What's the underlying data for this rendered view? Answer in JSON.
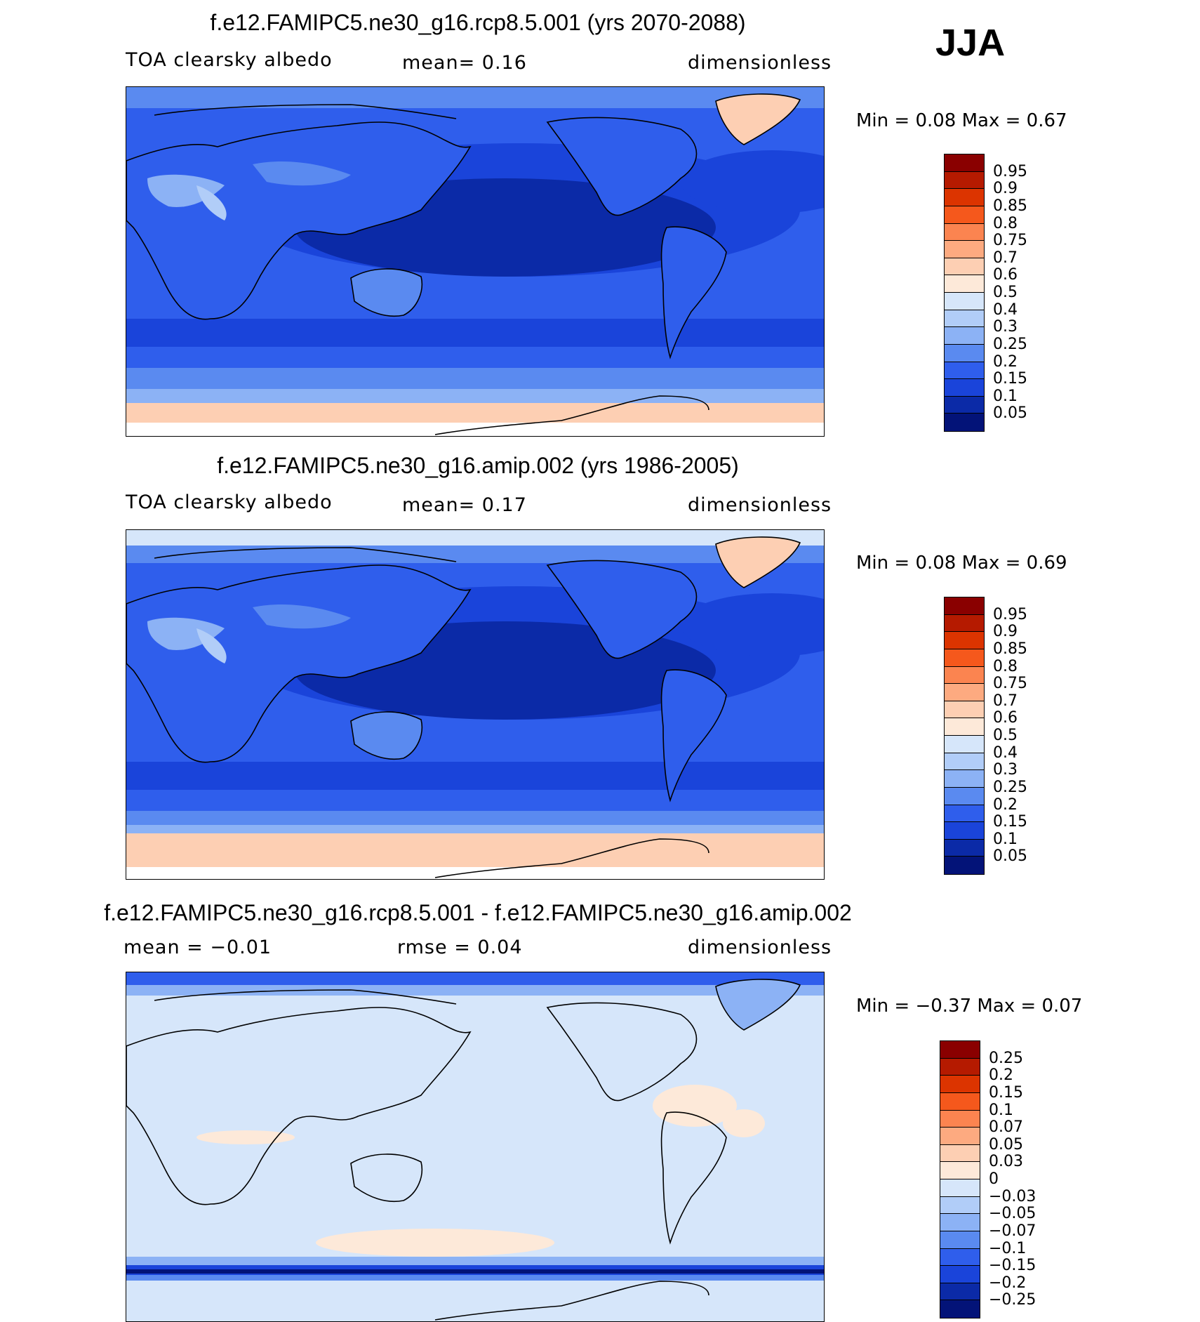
{
  "season": "JJA",
  "panels": [
    {
      "title": "f.e12.FAMIPC5.ne30_g16.rcp8.5.001 (yrs 2070-2088)",
      "variable": "TOA clearsky albedo",
      "stat1": "mean=    0.16",
      "units": "dimensionless",
      "minmax": "Min =    0.08  Max =    0.67",
      "colorbar": [
        "0.95",
        "0.9",
        "0.85",
        "0.8",
        "0.75",
        "0.7",
        "0.6",
        "0.5",
        "0.4",
        "0.3",
        "0.25",
        "0.2",
        "0.15",
        "0.1",
        "0.05"
      ]
    },
    {
      "title": "f.e12.FAMIPC5.ne30_g16.amip.002 (yrs 1986-2005)",
      "variable": "TOA clearsky albedo",
      "stat1": "mean=    0.17",
      "units": "dimensionless",
      "minmax": "Min =    0.08  Max =    0.69",
      "colorbar": [
        "0.95",
        "0.9",
        "0.85",
        "0.8",
        "0.75",
        "0.7",
        "0.6",
        "0.5",
        "0.4",
        "0.3",
        "0.25",
        "0.2",
        "0.15",
        "0.1",
        "0.05"
      ]
    },
    {
      "title": "f.e12.FAMIPC5.ne30_g16.rcp8.5.001 - f.e12.FAMIPC5.ne30_g16.amip.002",
      "stat1": "mean =   −0.01",
      "stat2": "rmse =    0.04",
      "units": "dimensionless",
      "minmax": "Min =   −0.37  Max =    0.07",
      "colorbar": [
        "0.25",
        "0.2",
        "0.15",
        "0.1",
        "0.07",
        "0.05",
        "0.03",
        "0",
        "−0.03",
        "−0.05",
        "−0.07",
        "−0.1",
        "−0.15",
        "−0.2",
        "−0.25"
      ]
    }
  ],
  "colors": {
    "abs_scale": [
      "#8a0000",
      "#b51a00",
      "#dc3400",
      "#f5581c",
      "#fb8450",
      "#fdaa80",
      "#fdcfb3",
      "#fde9d9",
      "#d6e6fa",
      "#b1cdf8",
      "#8cb2f5",
      "#5a8af0",
      "#2f5eec",
      "#1a44da",
      "#0b2aa7",
      "#031378"
    ],
    "diff_scale": [
      "#8a0000",
      "#b51a00",
      "#dc3400",
      "#f5581c",
      "#fb8450",
      "#fdaa80",
      "#fdcfb3",
      "#fde9d9",
      "#d6e6fa",
      "#b1cdf8",
      "#8cb2f5",
      "#5a8af0",
      "#2f5eec",
      "#1a44da",
      "#0b2aa7",
      "#031378"
    ]
  }
}
